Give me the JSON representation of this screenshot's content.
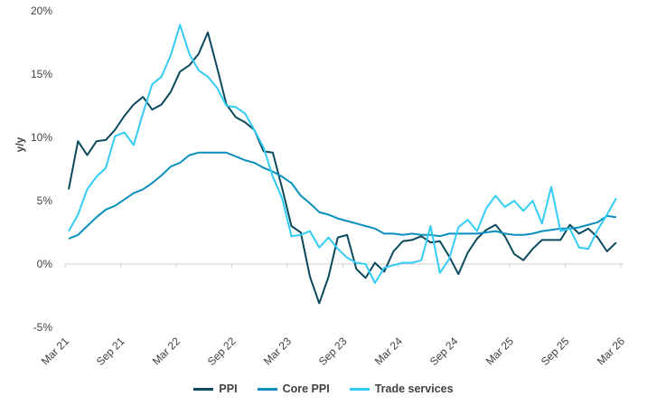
{
  "chart_data": {
    "type": "line",
    "title": "",
    "xlabel": "",
    "ylabel": "y/y",
    "ylim": [
      -5,
      20
    ],
    "yticks": [
      "-5%",
      "0%",
      "5%",
      "10%",
      "15%",
      "20%"
    ],
    "ytick_values": [
      -5,
      0,
      5,
      10,
      15,
      20
    ],
    "xtick_labels": [
      "Mar 21",
      "Sep 21",
      "Mar 22",
      "Sep 22",
      "Mar 23",
      "Sep 23",
      "Mar 24",
      "Sep 24",
      "Mar 25",
      "Sep 25",
      "Mar 26"
    ],
    "x_start": "Mar 21",
    "x_end": "Feb 26",
    "frequency": "monthly",
    "grid": false,
    "legend_position": "bottom",
    "series": [
      {
        "name": "PPI",
        "color": "#0b4a5e",
        "values": [
          5.9,
          9.7,
          8.6,
          9.7,
          9.8,
          10.6,
          11.7,
          12.6,
          13.2,
          12.2,
          12.6,
          13.6,
          15.2,
          15.7,
          16.6,
          18.3,
          15.5,
          12.6,
          11.6,
          11.2,
          10.6,
          8.9,
          8.8,
          6.0,
          3.0,
          2.5,
          -1.0,
          -3.1,
          -1.0,
          2.1,
          2.3,
          -0.4,
          -1.1,
          0.1,
          -0.6,
          1.0,
          1.8,
          1.9,
          2.2,
          1.7,
          1.8,
          0.6,
          -0.8,
          0.9,
          2.0,
          2.7,
          3.1,
          2.2,
          0.8,
          0.3,
          1.2,
          1.9,
          1.9,
          1.9,
          3.1,
          2.4,
          2.8,
          2.1,
          1.0,
          1.7
        ]
      },
      {
        "name": "Core PPI",
        "color": "#0a8fbd",
        "values": [
          2.0,
          2.3,
          3.0,
          3.7,
          4.3,
          4.6,
          5.1,
          5.6,
          5.9,
          6.4,
          7.0,
          7.7,
          8.0,
          8.6,
          8.8,
          8.8,
          8.8,
          8.8,
          8.5,
          8.2,
          8.0,
          7.6,
          7.3,
          6.9,
          6.4,
          5.4,
          4.8,
          4.1,
          3.9,
          3.6,
          3.4,
          3.2,
          3.0,
          2.8,
          2.4,
          2.4,
          2.3,
          2.4,
          2.3,
          2.3,
          2.2,
          2.4,
          2.4,
          2.4,
          2.4,
          2.5,
          2.6,
          2.4,
          2.3,
          2.3,
          2.4,
          2.6,
          2.7,
          2.8,
          2.8,
          2.9,
          3.1,
          3.3,
          3.8,
          3.7
        ]
      },
      {
        "name": "Trade services",
        "color": "#33ccf5",
        "values": [
          2.6,
          3.9,
          5.9,
          6.9,
          7.6,
          10.1,
          10.4,
          9.4,
          11.9,
          14.2,
          14.8,
          16.5,
          18.9,
          16.6,
          15.3,
          14.8,
          13.9,
          12.5,
          12.4,
          11.9,
          10.6,
          9.2,
          6.9,
          5.2,
          2.2,
          2.3,
          2.6,
          1.3,
          2.1,
          1.2,
          0.5,
          0.1,
          0.0,
          -1.5,
          -0.3,
          -0.1,
          0.1,
          0.1,
          0.3,
          3.0,
          -0.7,
          0.4,
          2.9,
          3.5,
          2.6,
          4.4,
          5.4,
          4.5,
          5.0,
          4.2,
          5.0,
          3.2,
          6.1,
          2.6,
          2.8,
          1.3,
          1.2,
          2.7,
          3.9,
          5.2
        ]
      }
    ]
  }
}
